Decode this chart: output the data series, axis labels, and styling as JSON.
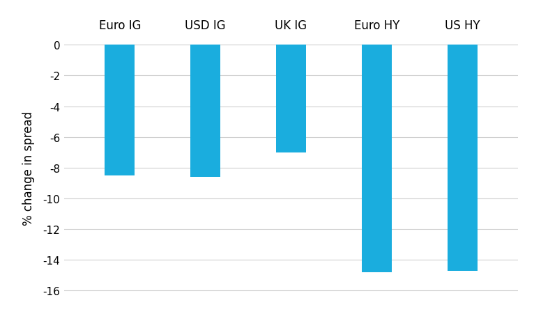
{
  "categories": [
    "Euro IG",
    "USD IG",
    "UK IG",
    "Euro HY",
    "US HY"
  ],
  "values": [
    -8.5,
    -8.6,
    -7.0,
    -14.8,
    -14.7
  ],
  "bar_color": "#1AADDE",
  "ylabel": "% change in spread",
  "ylim_min": -16.5,
  "ylim_max": 0.5,
  "yticks": [
    0,
    -2,
    -4,
    -6,
    -8,
    -10,
    -12,
    -14,
    -16
  ],
  "bar_width": 0.35,
  "background_color": "#ffffff",
  "grid_color": "#d0d0d0",
  "label_fontsize": 12,
  "tick_fontsize": 11,
  "category_fontsize": 12
}
